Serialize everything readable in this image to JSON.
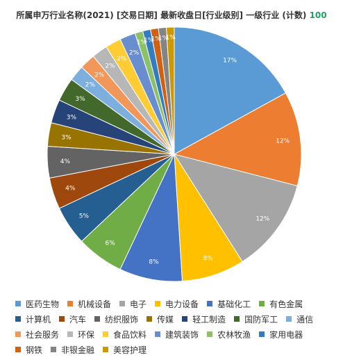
{
  "title": "所属申万行业名称(2021) [交易日期] 最新收盘日[行业级别] 一级行业 (计数)",
  "count_value": "100",
  "chart_data": {
    "type": "pie",
    "title": "所属申万行业名称(2021) [交易日期] 最新收盘日[行业级别] 一级行业 (计数)",
    "total": 100,
    "slices": [
      {
        "label": "医药生物",
        "value": 17,
        "color": "#5b9bd5"
      },
      {
        "label": "机械设备",
        "value": 12,
        "color": "#ed7d31"
      },
      {
        "label": "电子",
        "value": 12,
        "color": "#a5a5a5"
      },
      {
        "label": "电力设备",
        "value": 8,
        "color": "#ffc000"
      },
      {
        "label": "基础化工",
        "value": 8,
        "color": "#4472c4"
      },
      {
        "label": "有色金属",
        "value": 6,
        "color": "#70ad47"
      },
      {
        "label": "计算机",
        "value": 5,
        "color": "#255e91"
      },
      {
        "label": "汽车",
        "value": 4,
        "color": "#9e480e"
      },
      {
        "label": "纺织服饰",
        "value": 4,
        "color": "#636363"
      },
      {
        "label": "传媒",
        "value": 3,
        "color": "#997300"
      },
      {
        "label": "轻工制造",
        "value": 3,
        "color": "#264478"
      },
      {
        "label": "国防军工",
        "value": 3,
        "color": "#43682b"
      },
      {
        "label": "通信",
        "value": 2,
        "color": "#7cafdd"
      },
      {
        "label": "社会服务",
        "value": 2,
        "color": "#f1975a"
      },
      {
        "label": "环保",
        "value": 2,
        "color": "#b7b7b7"
      },
      {
        "label": "食品饮料",
        "value": 2,
        "color": "#ffcd33"
      },
      {
        "label": "建筑装饰",
        "value": 2,
        "color": "#698ed0"
      },
      {
        "label": "农林牧渔",
        "value": 1,
        "color": "#8cc168"
      },
      {
        "label": "家用电器",
        "value": 1,
        "color": "#327dc2"
      },
      {
        "label": "钢铁",
        "value": 1,
        "color": "#d26012"
      },
      {
        "label": "非银金融",
        "value": 1,
        "color": "#848484"
      },
      {
        "label": "美容护理",
        "value": 1,
        "color": "#cc9a00"
      }
    ],
    "legend_position": "bottom"
  }
}
